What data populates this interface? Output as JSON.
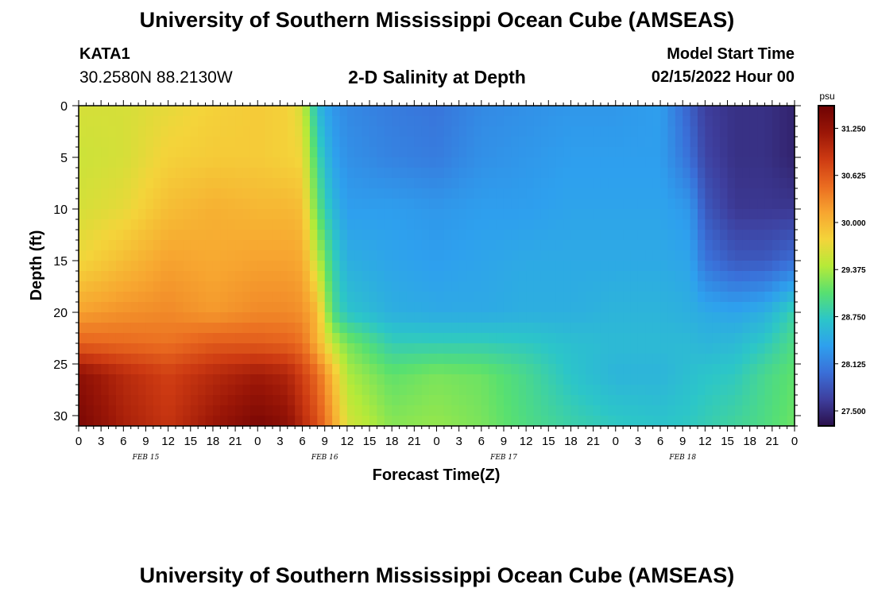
{
  "header": {
    "title": "University of Southern Mississippi Ocean Cube (AMSEAS)",
    "station_id": "KATA1",
    "station_coords": "30.2580N  88.2130W",
    "plot_title": "2-D Salinity at Depth",
    "model_start_label": "Model Start Time",
    "model_start_value": "02/15/2022 Hour 00"
  },
  "footer": {
    "title": "University of Southern Mississippi Ocean Cube (AMSEAS)"
  },
  "chart_data": {
    "type": "heatmap",
    "title": "2-D Salinity at Depth",
    "xlabel": "Forecast Time(Z)",
    "ylabel": "Depth (ft)",
    "x_tick_labels": [
      "0",
      "3",
      "6",
      "9",
      "12",
      "15",
      "18",
      "21",
      "0",
      "3",
      "6",
      "9",
      "12",
      "15",
      "18",
      "21",
      "0",
      "3",
      "6",
      "9",
      "12",
      "15",
      "18",
      "21",
      "0",
      "3",
      "6",
      "9",
      "12",
      "15",
      "18",
      "21",
      "0"
    ],
    "x_unit_hours": 3,
    "x_range_hours": [
      0,
      96
    ],
    "date_labels": [
      {
        "label": "FEB 15",
        "hour": 9
      },
      {
        "label": "FEB 16",
        "hour": 33
      },
      {
        "label": "FEB 17",
        "hour": 57
      },
      {
        "label": "FEB 18",
        "hour": 81
      }
    ],
    "y_ticks": [
      0,
      5,
      10,
      15,
      20,
      25,
      30
    ],
    "y_range": [
      0,
      31
    ],
    "y_inverted": true,
    "colorbar": {
      "unit": "psu",
      "range": [
        27.3,
        31.55
      ],
      "tick_values": [
        31.25,
        30.625,
        30.0,
        29.375,
        28.75,
        28.125,
        27.5
      ],
      "tick_labels": [
        "31.250",
        "30.625",
        "30.000",
        "29.375",
        "28.750",
        "28.125",
        "27.500"
      ],
      "colors": [
        "#2a0f4a",
        "#3e3f9e",
        "#3a6fd8",
        "#2ea0ee",
        "#2cc6c8",
        "#58e070",
        "#b6ea38",
        "#f4d43a",
        "#f7a530",
        "#ea6b20",
        "#cd3a12",
        "#9a1607",
        "#6e0203"
      ]
    },
    "row_depths": [
      0,
      5,
      10,
      15,
      20,
      23,
      26,
      31
    ],
    "col_hours": [
      0,
      6,
      12,
      18,
      24,
      28,
      30,
      32,
      34,
      36,
      42,
      48,
      54,
      60,
      66,
      72,
      78,
      82,
      84,
      88,
      92,
      96
    ],
    "values": [
      [
        29.6,
        29.6,
        29.7,
        29.8,
        29.85,
        29.8,
        29.6,
        28.6,
        28.3,
        28.2,
        28.1,
        28.05,
        28.2,
        28.25,
        28.3,
        28.3,
        28.35,
        27.9,
        27.65,
        27.55,
        27.55,
        27.45
      ],
      [
        29.55,
        29.6,
        29.8,
        29.85,
        29.85,
        29.8,
        29.75,
        28.9,
        28.4,
        28.25,
        28.15,
        28.1,
        28.25,
        28.3,
        28.35,
        28.35,
        28.35,
        28.0,
        27.7,
        27.55,
        27.55,
        27.45
      ],
      [
        29.6,
        29.7,
        29.95,
        30.05,
        30.0,
        30.0,
        29.95,
        29.1,
        28.6,
        28.35,
        28.35,
        28.3,
        28.35,
        28.35,
        28.4,
        28.4,
        28.4,
        28.3,
        27.85,
        27.6,
        27.6,
        27.6
      ],
      [
        29.75,
        29.95,
        30.15,
        30.1,
        30.15,
        30.15,
        30.1,
        29.5,
        28.85,
        28.5,
        28.4,
        28.35,
        28.4,
        28.45,
        28.45,
        28.45,
        28.45,
        28.4,
        28.05,
        27.85,
        27.85,
        28.0
      ],
      [
        30.15,
        30.25,
        30.3,
        30.2,
        30.3,
        30.3,
        30.25,
        30.0,
        29.0,
        28.7,
        28.5,
        28.45,
        28.45,
        28.5,
        28.5,
        28.55,
        28.55,
        28.5,
        28.45,
        28.4,
        28.5,
        28.85
      ],
      [
        30.55,
        30.5,
        30.45,
        30.6,
        30.6,
        30.55,
        30.45,
        30.05,
        29.5,
        29.2,
        28.8,
        28.8,
        28.8,
        28.75,
        28.65,
        28.6,
        28.6,
        28.6,
        28.55,
        28.6,
        28.75,
        29.0
      ],
      [
        31.3,
        31.0,
        30.8,
        31.0,
        31.15,
        31.05,
        30.8,
        30.5,
        30.0,
        29.4,
        29.1,
        29.2,
        29.15,
        28.95,
        28.7,
        28.55,
        28.55,
        28.65,
        28.7,
        28.75,
        28.95,
        29.1
      ],
      [
        31.45,
        31.1,
        30.9,
        31.2,
        31.45,
        31.3,
        31.0,
        30.7,
        30.2,
        29.6,
        29.25,
        29.3,
        29.2,
        29.0,
        28.85,
        28.75,
        28.7,
        28.75,
        28.8,
        28.9,
        29.0,
        29.15
      ]
    ]
  }
}
